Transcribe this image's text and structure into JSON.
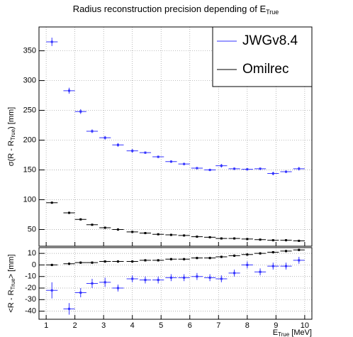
{
  "chart_data": [
    {
      "type": "scatter",
      "title": {
        "text": "Radius reconstruction precision depending of E",
        "sub": "True"
      },
      "ylabel": {
        "text": "σ(R - R",
        "sub": "True",
        "end": ") [mm]"
      },
      "xlim": [
        0.75,
        10.25
      ],
      "xticks": [
        1,
        2,
        3,
        4,
        5,
        6,
        7,
        8,
        9,
        10
      ],
      "ylim": [
        22,
        390
      ],
      "yticks": [
        50,
        100,
        150,
        200,
        250,
        300,
        350
      ],
      "grid": true,
      "legend": "upper right",
      "xerr": 0.2,
      "x": [
        1.2,
        1.8,
        2.2,
        2.6,
        3.05,
        3.5,
        4.0,
        4.45,
        4.9,
        5.35,
        5.8,
        6.25,
        6.7,
        7.1,
        7.55,
        8.0,
        8.45,
        8.9,
        9.35,
        9.8
      ],
      "series": [
        {
          "name": "JWGv8.4",
          "color": "#3333ff",
          "values": [
            365,
            283,
            248,
            215,
            204,
            192,
            182,
            179,
            172,
            164,
            160,
            153,
            150,
            157,
            152,
            151,
            152,
            144,
            147,
            152
          ],
          "yerr": [
            7,
            5,
            4,
            3,
            3,
            3,
            3,
            2,
            2,
            2,
            2,
            2,
            2,
            3,
            2,
            2,
            2,
            3,
            2,
            3
          ]
        },
        {
          "name": "Omilrec",
          "color": "#000000",
          "values": [
            95,
            78,
            67,
            58,
            53,
            50,
            46,
            44,
            42,
            41,
            40,
            38,
            37,
            35,
            35,
            34,
            33,
            32,
            32,
            31
          ],
          "yerr": [
            1,
            1,
            1,
            1,
            1,
            1,
            1,
            1,
            1,
            1,
            1,
            1,
            1,
            1,
            1,
            1,
            1,
            1,
            1,
            1
          ]
        }
      ]
    },
    {
      "type": "scatter",
      "ylabel": {
        "text": "<R - R",
        "sub": "True",
        "end": "> [mm]"
      },
      "xlabel": {
        "text": "E",
        "sub": "True",
        "end": " [MeV]"
      },
      "xlim": [
        0.75,
        10.25
      ],
      "xticks": [
        1,
        2,
        3,
        4,
        5,
        6,
        7,
        8,
        9,
        10
      ],
      "ylim": [
        -47,
        15
      ],
      "yticks": [
        -40,
        -30,
        -20,
        -10,
        0,
        10
      ],
      "grid": true,
      "xerr": 0.2,
      "x": [
        1.2,
        1.8,
        2.2,
        2.6,
        3.05,
        3.5,
        4.0,
        4.45,
        4.9,
        5.35,
        5.8,
        6.25,
        6.7,
        7.1,
        7.55,
        8.0,
        8.45,
        8.9,
        9.35,
        9.8
      ],
      "series": [
        {
          "name": "JWGv8.4",
          "color": "#3333ff",
          "values": [
            -22,
            -38,
            -24,
            -16,
            -15,
            -20,
            -12,
            -13,
            -13,
            -11,
            -11,
            -10,
            -11,
            -12,
            -7,
            0,
            -6,
            -1,
            -1,
            4
          ],
          "yerr": [
            7,
            5,
            4,
            4,
            4,
            3,
            3,
            3,
            3,
            3,
            3,
            3,
            3,
            3,
            3,
            3,
            3,
            3,
            3,
            3
          ]
        },
        {
          "name": "Omilrec",
          "color": "#000000",
          "values": [
            0,
            1,
            2,
            2,
            3,
            3,
            3,
            4,
            4,
            5,
            5,
            6,
            6,
            7,
            8,
            9,
            10,
            11,
            12,
            13
          ],
          "yerr": [
            1,
            1,
            1,
            1,
            1,
            1,
            1,
            1,
            1,
            1,
            1,
            1,
            1,
            1,
            1,
            1,
            1,
            1,
            1,
            1
          ]
        }
      ]
    }
  ]
}
